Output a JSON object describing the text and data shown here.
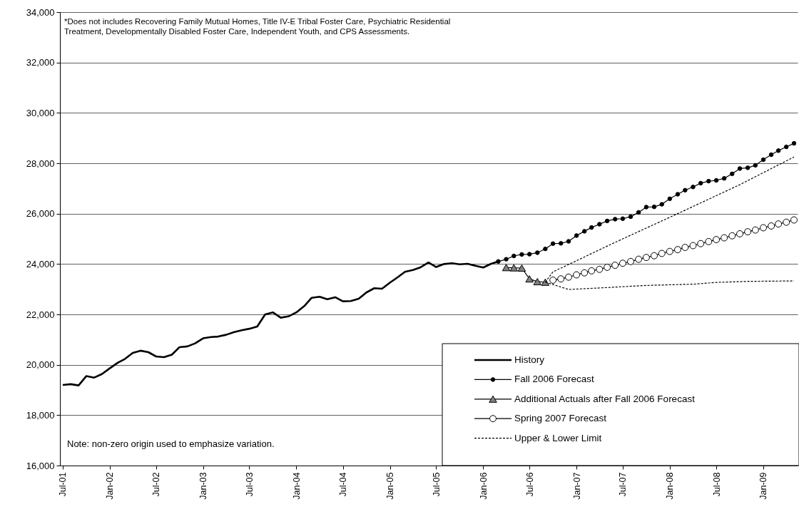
{
  "chart_data": {
    "type": "line",
    "annotations": [
      "*Does not includes Recovering Family Mutual Homes, Title IV-E Tribal Foster Care, Psychiatric Residential Treatment, Developmentally Disabled Foster Care, Independent Youth, and CPS Assessments.",
      "Note: non-zero origin used to emphasize variation."
    ],
    "x": [
      "2001-07",
      "2001-08",
      "2001-09",
      "2001-10",
      "2001-11",
      "2001-12",
      "2002-01",
      "2002-02",
      "2002-03",
      "2002-04",
      "2002-05",
      "2002-06",
      "2002-07",
      "2002-08",
      "2002-09",
      "2002-10",
      "2002-11",
      "2002-12",
      "2003-01",
      "2003-02",
      "2003-03",
      "2003-04",
      "2003-05",
      "2003-06",
      "2003-07",
      "2003-08",
      "2003-09",
      "2003-10",
      "2003-11",
      "2003-12",
      "2004-01",
      "2004-02",
      "2004-03",
      "2004-04",
      "2004-05",
      "2004-06",
      "2004-07",
      "2004-08",
      "2004-09",
      "2004-10",
      "2004-11",
      "2004-12",
      "2005-01",
      "2005-02",
      "2005-03",
      "2005-04",
      "2005-05",
      "2005-06",
      "2005-07",
      "2005-08",
      "2005-09",
      "2005-10",
      "2005-11",
      "2005-12",
      "2006-01",
      "2006-02",
      "2006-03"
    ],
    "series": [
      {
        "name": "History",
        "color": "#000000",
        "marker": "none",
        "values": [
          19200,
          19230,
          19180,
          19550,
          19490,
          19630,
          19860,
          20080,
          20230,
          20470,
          20560,
          20500,
          20330,
          20300,
          20400,
          20700,
          20730,
          20850,
          21050,
          21100,
          21120,
          21190,
          21290,
          21370,
          21430,
          21520,
          22000,
          22080,
          21870,
          21920,
          22080,
          22330,
          22660,
          22700,
          22600,
          22680,
          22520,
          22530,
          22620,
          22870,
          23040,
          23020,
          23260,
          23480,
          23690,
          23760,
          23870,
          24060,
          23880,
          24000,
          24030,
          23990,
          24010,
          23930,
          23860,
          24010,
          24100
        ]
      },
      {
        "name": "Fall 2006 Forecast",
        "color": "#000000",
        "marker": "circle",
        "x": [
          "2006-03",
          "2006-04",
          "2006-05",
          "2006-06",
          "2006-07",
          "2006-08",
          "2006-09",
          "2006-10",
          "2006-11",
          "2006-12",
          "2007-01",
          "2007-02",
          "2007-03",
          "2007-04",
          "2007-05",
          "2007-06",
          "2007-07",
          "2007-08",
          "2007-09",
          "2007-10",
          "2007-11",
          "2007-12",
          "2008-01",
          "2008-02",
          "2008-03",
          "2008-04",
          "2008-05",
          "2008-06",
          "2008-07",
          "2008-08",
          "2008-09",
          "2008-10",
          "2008-11",
          "2008-12",
          "2009-01",
          "2009-02",
          "2009-03",
          "2009-04",
          "2009-05"
        ],
        "values": [
          24100,
          24190,
          24320,
          24380,
          24390,
          24450,
          24600,
          24810,
          24820,
          24900,
          25130,
          25300,
          25450,
          25580,
          25710,
          25780,
          25800,
          25880,
          26050,
          26260,
          26270,
          26370,
          26590,
          26770,
          26930,
          27060,
          27210,
          27290,
          27320,
          27400,
          27580,
          27790,
          27820,
          27920,
          28140,
          28340,
          28500,
          28650,
          28790
        ]
      },
      {
        "name": "Additional Actuals after Fall 2006 Forecast",
        "color": "#808080",
        "marker": "triangle",
        "x": [
          "2006-04",
          "2006-05",
          "2006-06",
          "2006-07",
          "2006-08",
          "2006-09"
        ],
        "values": [
          23860,
          23850,
          23840,
          23410,
          23300,
          23280
        ]
      },
      {
        "name": "Spring 2007 Forecast",
        "color": "#ffffff",
        "marker": "circle",
        "x": [
          "2006-10",
          "2006-11",
          "2006-12",
          "2007-01",
          "2007-02",
          "2007-03",
          "2007-04",
          "2007-05",
          "2007-06",
          "2007-07",
          "2007-08",
          "2007-09",
          "2007-10",
          "2007-11",
          "2007-12",
          "2008-01",
          "2008-02",
          "2008-03",
          "2008-04",
          "2008-05",
          "2008-06",
          "2008-07",
          "2008-08",
          "2008-09",
          "2008-10",
          "2008-11",
          "2008-12",
          "2009-01",
          "2009-02",
          "2009-03",
          "2009-04",
          "2009-05"
        ],
        "values": [
          23360,
          23410,
          23480,
          23570,
          23650,
          23730,
          23790,
          23870,
          23950,
          24030,
          24100,
          24190,
          24260,
          24330,
          24420,
          24500,
          24570,
          24660,
          24730,
          24810,
          24890,
          24970,
          25040,
          25120,
          25200,
          25280,
          25350,
          25440,
          25510,
          25590,
          25660,
          25750
        ]
      },
      {
        "name": "Upper & Lower Limit",
        "color": "#000000",
        "marker": "none",
        "line_style": "dashed",
        "x": [
          "2006-09",
          "2006-10",
          "2006-12",
          "2007-06",
          "2008-02",
          "2008-10",
          "2009-05"
        ],
        "values": [
          23280,
          23690,
          23980,
          24860,
          26000,
          27150,
          28250
        ]
      },
      {
        "color": "#000000",
        "marker": "none",
        "line_style": "dashed",
        "x": [
          "2006-09",
          "2006-12",
          "2007-04",
          "2007-10",
          "2008-04",
          "2008-07",
          "2008-11",
          "2009-05"
        ],
        "values": [
          23280,
          22990,
          23050,
          23150,
          23200,
          23270,
          23310,
          23330
        ]
      }
    ],
    "xlim": [
      "2001-06-20",
      "2009-05-15"
    ],
    "xticks": [
      {
        "value": "2001-07",
        "label": "Jul-01"
      },
      {
        "value": "2002-01",
        "label": "Jan-02"
      },
      {
        "value": "2002-07",
        "label": "Jul-02"
      },
      {
        "value": "2003-01",
        "label": "Jan-03"
      },
      {
        "value": "2003-07",
        "label": "Jul-03"
      },
      {
        "value": "2004-01",
        "label": "Jan-04"
      },
      {
        "value": "2004-07",
        "label": "Jul-04"
      },
      {
        "value": "2005-01",
        "label": "Jan-05"
      },
      {
        "value": "2005-07",
        "label": "Jul-05"
      },
      {
        "value": "2006-01",
        "label": "Jan-06"
      },
      {
        "value": "2006-07",
        "label": "Jul-06"
      },
      {
        "value": "2007-01",
        "label": "Jan-07"
      },
      {
        "value": "2007-07",
        "label": "Jul-07"
      },
      {
        "value": "2008-01",
        "label": "Jan-08"
      },
      {
        "value": "2008-07",
        "label": "Jul-08"
      },
      {
        "value": "2009-01",
        "label": "Jan-09"
      }
    ],
    "ylim": [
      16000,
      34000
    ],
    "yticks": [
      {
        "value": 16000,
        "label": "16,000"
      },
      {
        "value": 18000,
        "label": "18,000"
      },
      {
        "value": 20000,
        "label": "20,000"
      },
      {
        "value": 22000,
        "label": "22,000"
      },
      {
        "value": 24000,
        "label": "24,000"
      },
      {
        "value": 26000,
        "label": "26,000"
      },
      {
        "value": 28000,
        "label": "28,000"
      },
      {
        "value": 30000,
        "label": "30,000"
      },
      {
        "value": 32000,
        "label": "32,000"
      },
      {
        "value": 34000,
        "label": "34,000"
      }
    ],
    "grid": "y",
    "legend": "bottom right"
  }
}
